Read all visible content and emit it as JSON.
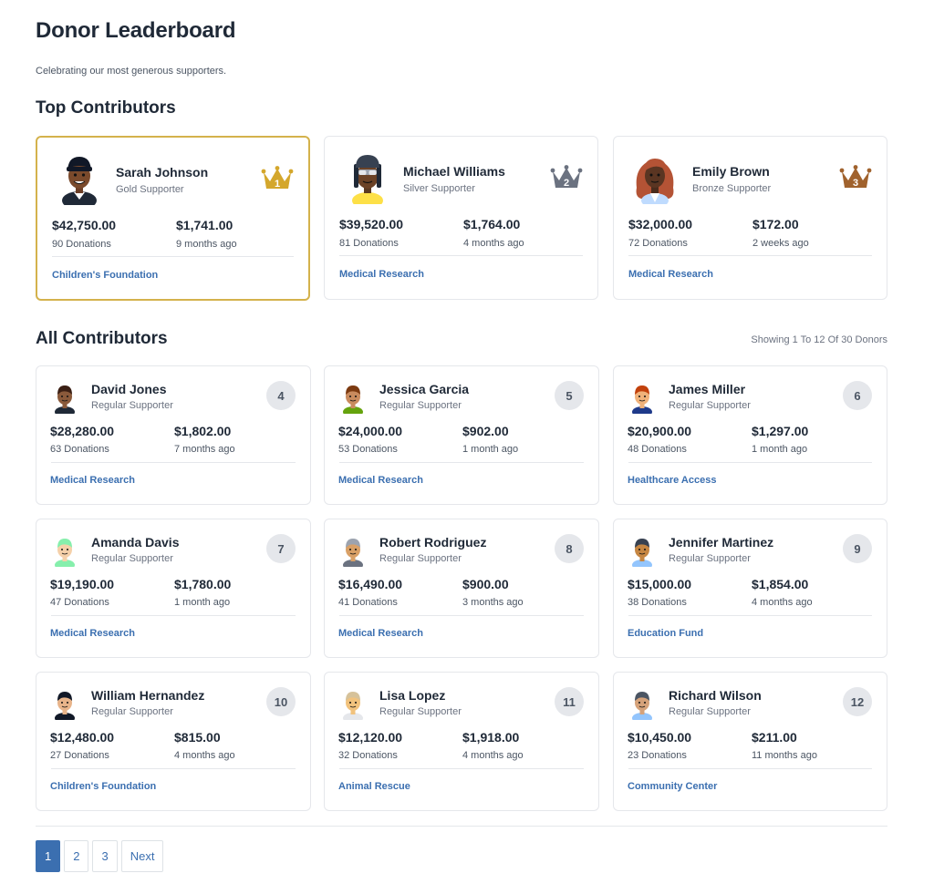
{
  "header": {
    "title": "Donor Leaderboard",
    "subtitle": "Celebrating our most generous supporters."
  },
  "top_section": {
    "title": "Top Contributors",
    "donors": [
      {
        "name": "Sarah Johnson",
        "tier": "Gold Supporter",
        "rank": "1",
        "total": "$42,750.00",
        "donations": "90 Donations",
        "recent": "$1,741.00",
        "when": "9 months ago",
        "cause": "Children's Foundation",
        "crown_color": "#d4a72c",
        "avatar": "person-avatar-dark-beanie"
      },
      {
        "name": "Michael Williams",
        "tier": "Silver Supporter",
        "rank": "2",
        "total": "$39,520.00",
        "donations": "81 Donations",
        "recent": "$1,764.00",
        "when": "4 months ago",
        "cause": "Medical Research",
        "crown_color": "#6b7280",
        "avatar": "person-avatar-sunglasses-locs"
      },
      {
        "name": "Emily Brown",
        "tier": "Bronze Supporter",
        "rank": "3",
        "total": "$32,000.00",
        "donations": "72 Donations",
        "recent": "$172.00",
        "when": "2 weeks ago",
        "cause": "Medical Research",
        "crown_color": "#a0622d",
        "avatar": "person-avatar-red-hair"
      }
    ]
  },
  "all_section": {
    "title": "All Contributors",
    "showing": "Showing 1 To 12 Of 30 Donors",
    "donors": [
      {
        "name": "David Jones",
        "tier": "Regular Supporter",
        "rank": "4",
        "total": "$28,280.00",
        "donations": "63 Donations",
        "recent": "$1,802.00",
        "when": "7 months ago",
        "cause": "Medical Research"
      },
      {
        "name": "Jessica Garcia",
        "tier": "Regular Supporter",
        "rank": "5",
        "total": "$24,000.00",
        "donations": "53 Donations",
        "recent": "$902.00",
        "when": "1 month ago",
        "cause": "Medical Research"
      },
      {
        "name": "James Miller",
        "tier": "Regular Supporter",
        "rank": "6",
        "total": "$20,900.00",
        "donations": "48 Donations",
        "recent": "$1,297.00",
        "when": "1 month ago",
        "cause": "Healthcare Access"
      },
      {
        "name": "Amanda Davis",
        "tier": "Regular Supporter",
        "rank": "7",
        "total": "$19,190.00",
        "donations": "47 Donations",
        "recent": "$1,780.00",
        "when": "1 month ago",
        "cause": "Medical Research"
      },
      {
        "name": "Robert Rodriguez",
        "tier": "Regular Supporter",
        "rank": "8",
        "total": "$16,490.00",
        "donations": "41 Donations",
        "recent": "$900.00",
        "when": "3 months ago",
        "cause": "Medical Research"
      },
      {
        "name": "Jennifer Martinez",
        "tier": "Regular Supporter",
        "rank": "9",
        "total": "$15,000.00",
        "donations": "38 Donations",
        "recent": "$1,854.00",
        "when": "4 months ago",
        "cause": "Education Fund"
      },
      {
        "name": "William Hernandez",
        "tier": "Regular Supporter",
        "rank": "10",
        "total": "$12,480.00",
        "donations": "27 Donations",
        "recent": "$815.00",
        "when": "4 months ago",
        "cause": "Children's Foundation"
      },
      {
        "name": "Lisa Lopez",
        "tier": "Regular Supporter",
        "rank": "11",
        "total": "$12,120.00",
        "donations": "32 Donations",
        "recent": "$1,918.00",
        "when": "4 months ago",
        "cause": "Animal Rescue"
      },
      {
        "name": "Richard Wilson",
        "tier": "Regular Supporter",
        "rank": "12",
        "total": "$10,450.00",
        "donations": "23 Donations",
        "recent": "$211.00",
        "when": "11 months ago",
        "cause": "Community Center"
      }
    ]
  },
  "pagination": {
    "pages": [
      "1",
      "2",
      "3"
    ],
    "active": "1",
    "next_label": "Next"
  },
  "colors": {
    "accent": "#3b6fb0",
    "gold_border": "#d4b24c",
    "badge_bg": "#e5e7eb"
  }
}
